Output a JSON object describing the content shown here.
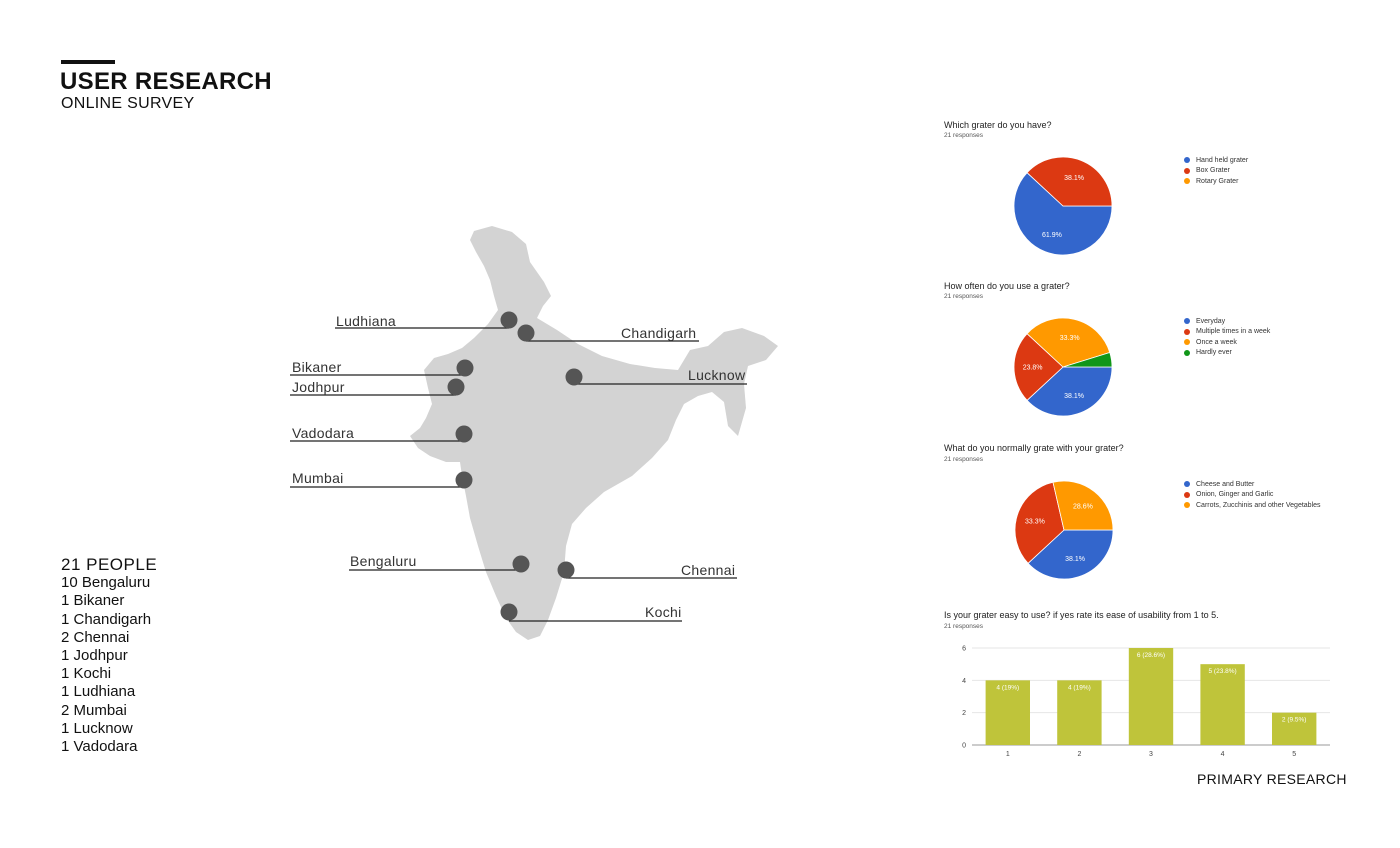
{
  "header": {
    "title": "USER RESEARCH",
    "subtitle": "ONLINE SURVEY"
  },
  "people": {
    "heading": "21 PEOPLE",
    "items": [
      "10 Bengaluru",
      "1 Bikaner",
      "1 Chandigarh",
      "2 Chennai",
      "1 Jodhpur",
      "1 Kochi",
      "1 Ludhiana",
      "2 Mumbai",
      "1 Lucknow",
      "1 Vadodara"
    ]
  },
  "map": {
    "cities": [
      "Ludhiana",
      "Chandigarh",
      "Bikaner",
      "Jodhpur",
      "Lucknow",
      "Vadodara",
      "Mumbai",
      "Bengaluru",
      "Chennai",
      "Kochi"
    ]
  },
  "footer": "PRIMARY RESEARCH",
  "colors": {
    "blue": "#3366cc",
    "red": "#dc3912",
    "orange": "#ff9900",
    "green": "#109618",
    "olive": "#bfc43a",
    "map": "#d3d3d3",
    "marker": "#555555"
  },
  "chart_data": [
    {
      "type": "pie",
      "title": "Which grater do you have?",
      "subtitle": "21 responses",
      "labels": [
        "Hand held grater",
        "Box Grater",
        "Rotary Grater"
      ],
      "values": [
        61.9,
        38.1,
        0
      ],
      "value_labels": [
        "61.9%",
        "38.1%",
        ""
      ],
      "colors": [
        "#3366cc",
        "#dc3912",
        "#ff9900"
      ]
    },
    {
      "type": "pie",
      "title": "How often do you use a grater?",
      "subtitle": "21 responses",
      "labels": [
        "Everyday",
        "Multiple times in a week",
        "Once a week",
        "Hardly ever"
      ],
      "values": [
        38.1,
        23.8,
        33.3,
        4.8
      ],
      "value_labels": [
        "38.1%",
        "23.8%",
        "33.3%",
        ""
      ],
      "colors": [
        "#3366cc",
        "#dc3912",
        "#ff9900",
        "#109618"
      ]
    },
    {
      "type": "pie",
      "title": "What do you normally grate with your grater?",
      "subtitle": "21 responses",
      "labels": [
        "Cheese and Butter",
        "Onion, Ginger and Garlic",
        "Carrots, Zucchinis and other Vegetables"
      ],
      "values": [
        38.1,
        33.3,
        28.6
      ],
      "value_labels": [
        "38.1%",
        "33.3%",
        "28.6%"
      ],
      "colors": [
        "#3366cc",
        "#dc3912",
        "#ff9900"
      ]
    },
    {
      "type": "bar",
      "title": "Is your grater easy to use? if yes rate its ease of usability from 1 to 5.",
      "subtitle": "21 responses",
      "categories": [
        "1",
        "2",
        "3",
        "4",
        "5"
      ],
      "values": [
        4,
        4,
        6,
        5,
        2
      ],
      "value_labels": [
        "4 (19%)",
        "4 (19%)",
        "6 (28.6%)",
        "5 (23.8%)",
        "2 (9.5%)"
      ],
      "yticks": [
        "0",
        "2",
        "4",
        "6"
      ],
      "ylim": [
        0,
        6
      ],
      "color": "#bfc43a"
    }
  ]
}
